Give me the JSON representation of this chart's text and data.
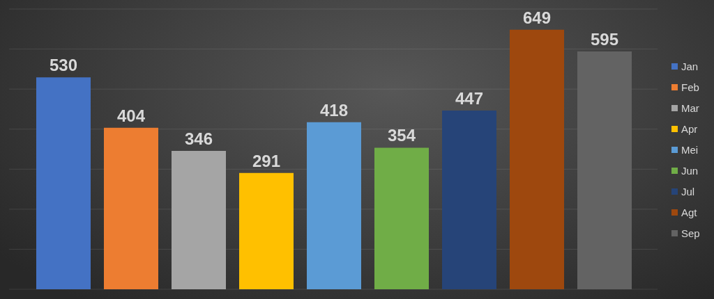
{
  "chart_data": {
    "type": "bar",
    "categories": [
      null,
      null,
      null,
      null,
      null,
      null,
      null,
      null,
      null
    ],
    "stacked": true,
    "series": [
      {
        "name": "Jan",
        "color": "#4472c4",
        "values": [
          530,
          null,
          null,
          null,
          null,
          null,
          null,
          null,
          null
        ]
      },
      {
        "name": "Feb",
        "color": "#ed7d31",
        "values": [
          null,
          404,
          null,
          null,
          null,
          null,
          null,
          null,
          null
        ]
      },
      {
        "name": "Mar",
        "color": "#a5a5a5",
        "values": [
          null,
          null,
          346,
          null,
          null,
          null,
          null,
          null,
          null
        ]
      },
      {
        "name": "Apr",
        "color": "#ffc000",
        "values": [
          null,
          null,
          null,
          291,
          null,
          null,
          null,
          null,
          null
        ]
      },
      {
        "name": "Mei",
        "color": "#5b9bd5",
        "values": [
          null,
          null,
          null,
          null,
          418,
          null,
          null,
          null,
          null
        ]
      },
      {
        "name": "Jun",
        "color": "#70ad47",
        "values": [
          null,
          null,
          null,
          null,
          null,
          354,
          null,
          null,
          null
        ]
      },
      {
        "name": "Jul",
        "color": "#264478",
        "values": [
          null,
          null,
          null,
          null,
          null,
          null,
          447,
          null,
          null
        ]
      },
      {
        "name": "Agt",
        "color": "#9e480e",
        "values": [
          null,
          null,
          null,
          null,
          null,
          null,
          null,
          649,
          null
        ]
      },
      {
        "name": "Sep",
        "color": "#636363",
        "values": [
          null,
          null,
          null,
          null,
          null,
          null,
          null,
          null,
          595
        ]
      }
    ],
    "tick_labels": false,
    "grid": "y",
    "legend": "right",
    "data_labels": true
  }
}
